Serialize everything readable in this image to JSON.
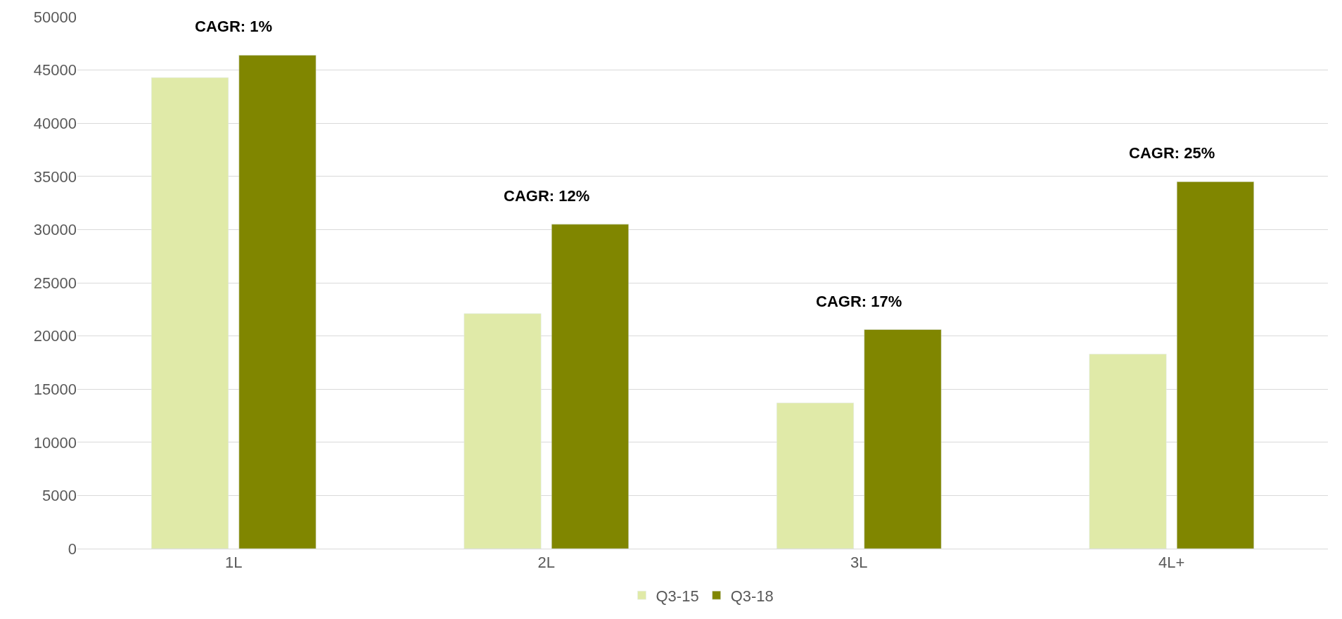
{
  "chart_data": {
    "type": "bar",
    "categories": [
      "1L",
      "2L",
      "3L",
      "4L+"
    ],
    "series": [
      {
        "name": "Q3-15",
        "color": "#e0eaa8",
        "values": [
          44300,
          22100,
          13700,
          18300
        ]
      },
      {
        "name": "Q3-18",
        "color": "#808600",
        "values": [
          46400,
          30500,
          20600,
          34500
        ]
      }
    ],
    "ylim": [
      0,
      50000
    ],
    "yticks": [
      0,
      5000,
      10000,
      15000,
      20000,
      25000,
      30000,
      35000,
      40000,
      45000,
      50000
    ],
    "grid": "y",
    "legend": "bottom",
    "annotations": [
      "CAGR: 1%",
      "CAGR: 12%",
      "CAGR: 17%",
      "CAGR: 25%"
    ]
  }
}
